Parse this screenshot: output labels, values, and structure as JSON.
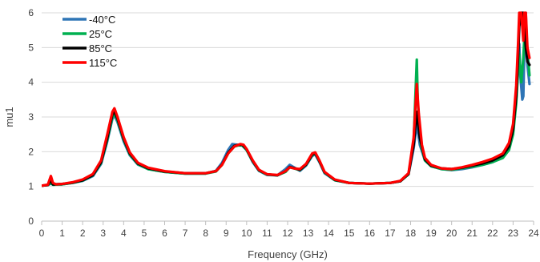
{
  "chart_data": {
    "type": "line",
    "title": "",
    "xlabel": "Frequency (GHz)",
    "ylabel": "mu1",
    "xlim": [
      0,
      24
    ],
    "ylim": [
      0,
      6
    ],
    "xticks": [
      "0",
      "1",
      "2",
      "3",
      "4",
      "5",
      "6",
      "7",
      "8",
      "9",
      "10",
      "11",
      "12",
      "13",
      "14",
      "15",
      "16",
      "17",
      "18",
      "19",
      "20",
      "21",
      "22",
      "23",
      "24"
    ],
    "yticks": [
      "0",
      "1",
      "2",
      "3",
      "4",
      "5",
      "6"
    ],
    "grid": "horizontal",
    "legend_position": "top-left",
    "series": [
      {
        "name": "-40°C",
        "color": "#2E75B6",
        "points": [
          [
            0,
            1.02
          ],
          [
            0.3,
            1.04
          ],
          [
            0.45,
            1.08
          ],
          [
            0.55,
            1.05
          ],
          [
            1,
            1.06
          ],
          [
            1.5,
            1.1
          ],
          [
            2,
            1.16
          ],
          [
            2.5,
            1.3
          ],
          [
            2.9,
            1.65
          ],
          [
            3.2,
            2.3
          ],
          [
            3.45,
            2.95
          ],
          [
            3.55,
            3.05
          ],
          [
            3.7,
            2.85
          ],
          [
            4,
            2.3
          ],
          [
            4.3,
            1.9
          ],
          [
            4.7,
            1.63
          ],
          [
            5.2,
            1.5
          ],
          [
            6,
            1.42
          ],
          [
            7,
            1.37
          ],
          [
            8,
            1.37
          ],
          [
            8.5,
            1.45
          ],
          [
            8.8,
            1.68
          ],
          [
            9.1,
            2.05
          ],
          [
            9.3,
            2.22
          ],
          [
            9.55,
            2.2
          ],
          [
            9.75,
            2.2
          ],
          [
            10,
            2.05
          ],
          [
            10.3,
            1.7
          ],
          [
            10.6,
            1.45
          ],
          [
            11,
            1.33
          ],
          [
            11.5,
            1.32
          ],
          [
            11.9,
            1.5
          ],
          [
            12.1,
            1.62
          ],
          [
            12.3,
            1.55
          ],
          [
            12.6,
            1.45
          ],
          [
            12.9,
            1.6
          ],
          [
            13.2,
            1.88
          ],
          [
            13.35,
            1.92
          ],
          [
            13.55,
            1.7
          ],
          [
            13.8,
            1.38
          ],
          [
            14.3,
            1.18
          ],
          [
            15,
            1.1
          ],
          [
            16,
            1.08
          ],
          [
            17,
            1.1
          ],
          [
            17.5,
            1.15
          ],
          [
            17.9,
            1.35
          ],
          [
            18.15,
            2.1
          ],
          [
            18.3,
            2.8
          ],
          [
            18.45,
            2.2
          ],
          [
            18.7,
            1.75
          ],
          [
            19,
            1.58
          ],
          [
            19.5,
            1.5
          ],
          [
            20,
            1.47
          ],
          [
            20.5,
            1.5
          ],
          [
            21,
            1.55
          ],
          [
            21.5,
            1.62
          ],
          [
            22,
            1.7
          ],
          [
            22.5,
            1.85
          ],
          [
            22.8,
            2.1
          ],
          [
            23,
            2.6
          ],
          [
            23.15,
            3.5
          ],
          [
            23.25,
            4.5
          ],
          [
            23.3,
            5.1
          ],
          [
            23.35,
            4.2
          ],
          [
            23.45,
            3.5
          ],
          [
            23.5,
            3.6
          ],
          [
            23.55,
            5.0
          ],
          [
            23.62,
            6.0
          ],
          [
            23.7,
            4.5
          ],
          [
            23.8,
            3.95
          ]
        ]
      },
      {
        "name": "25°C",
        "color": "#00B050",
        "points": [
          [
            0,
            1.02
          ],
          [
            0.3,
            1.04
          ],
          [
            0.45,
            1.1
          ],
          [
            0.55,
            1.05
          ],
          [
            1,
            1.06
          ],
          [
            1.5,
            1.1
          ],
          [
            2,
            1.17
          ],
          [
            2.5,
            1.32
          ],
          [
            2.9,
            1.68
          ],
          [
            3.2,
            2.35
          ],
          [
            3.45,
            3.0
          ],
          [
            3.55,
            3.1
          ],
          [
            3.7,
            2.9
          ],
          [
            4,
            2.35
          ],
          [
            4.3,
            1.92
          ],
          [
            4.7,
            1.64
          ],
          [
            5.2,
            1.5
          ],
          [
            6,
            1.42
          ],
          [
            7,
            1.37
          ],
          [
            8,
            1.37
          ],
          [
            8.5,
            1.43
          ],
          [
            8.8,
            1.62
          ],
          [
            9.1,
            1.95
          ],
          [
            9.4,
            2.15
          ],
          [
            9.6,
            2.18
          ],
          [
            9.8,
            2.18
          ],
          [
            10,
            2.05
          ],
          [
            10.3,
            1.72
          ],
          [
            10.6,
            1.46
          ],
          [
            11,
            1.34
          ],
          [
            11.5,
            1.32
          ],
          [
            11.9,
            1.42
          ],
          [
            12.1,
            1.55
          ],
          [
            12.3,
            1.52
          ],
          [
            12.6,
            1.47
          ],
          [
            12.9,
            1.62
          ],
          [
            13.2,
            1.9
          ],
          [
            13.35,
            1.95
          ],
          [
            13.55,
            1.72
          ],
          [
            13.8,
            1.4
          ],
          [
            14.3,
            1.18
          ],
          [
            15,
            1.1
          ],
          [
            16,
            1.08
          ],
          [
            17,
            1.1
          ],
          [
            17.5,
            1.15
          ],
          [
            17.9,
            1.35
          ],
          [
            18.15,
            2.3
          ],
          [
            18.3,
            4.65
          ],
          [
            18.35,
            3.4
          ],
          [
            18.5,
            2.2
          ],
          [
            18.7,
            1.75
          ],
          [
            19,
            1.58
          ],
          [
            19.5,
            1.5
          ],
          [
            20,
            1.48
          ],
          [
            20.5,
            1.52
          ],
          [
            21,
            1.57
          ],
          [
            21.5,
            1.62
          ],
          [
            22,
            1.7
          ],
          [
            22.5,
            1.82
          ],
          [
            22.8,
            2.05
          ],
          [
            23,
            2.5
          ],
          [
            23.15,
            3.4
          ],
          [
            23.25,
            4.4
          ],
          [
            23.3,
            4.8
          ],
          [
            23.4,
            4.0
          ],
          [
            23.5,
            4.7
          ],
          [
            23.55,
            5.3
          ],
          [
            23.62,
            5.8
          ],
          [
            23.7,
            4.9
          ],
          [
            23.8,
            4.2
          ]
        ]
      },
      {
        "name": "85°C",
        "color": "#000000",
        "points": [
          [
            0,
            1.02
          ],
          [
            0.3,
            1.04
          ],
          [
            0.45,
            1.18
          ],
          [
            0.55,
            1.06
          ],
          [
            1,
            1.07
          ],
          [
            1.5,
            1.11
          ],
          [
            2,
            1.18
          ],
          [
            2.5,
            1.33
          ],
          [
            2.9,
            1.7
          ],
          [
            3.2,
            2.4
          ],
          [
            3.45,
            3.08
          ],
          [
            3.55,
            3.15
          ],
          [
            3.7,
            2.95
          ],
          [
            4,
            2.38
          ],
          [
            4.3,
            1.95
          ],
          [
            4.7,
            1.66
          ],
          [
            5.2,
            1.52
          ],
          [
            6,
            1.43
          ],
          [
            7,
            1.38
          ],
          [
            8,
            1.38
          ],
          [
            8.5,
            1.44
          ],
          [
            8.8,
            1.63
          ],
          [
            9.1,
            1.97
          ],
          [
            9.4,
            2.17
          ],
          [
            9.6,
            2.2
          ],
          [
            9.8,
            2.2
          ],
          [
            10,
            2.07
          ],
          [
            10.3,
            1.73
          ],
          [
            10.6,
            1.47
          ],
          [
            11,
            1.35
          ],
          [
            11.5,
            1.32
          ],
          [
            11.9,
            1.44
          ],
          [
            12.1,
            1.56
          ],
          [
            12.3,
            1.53
          ],
          [
            12.6,
            1.48
          ],
          [
            12.9,
            1.63
          ],
          [
            13.2,
            1.92
          ],
          [
            13.35,
            1.96
          ],
          [
            13.55,
            1.73
          ],
          [
            13.8,
            1.41
          ],
          [
            14.3,
            1.19
          ],
          [
            15,
            1.1
          ],
          [
            16,
            1.08
          ],
          [
            17,
            1.1
          ],
          [
            17.5,
            1.15
          ],
          [
            17.9,
            1.36
          ],
          [
            18.15,
            2.2
          ],
          [
            18.3,
            3.15
          ],
          [
            18.45,
            2.4
          ],
          [
            18.7,
            1.78
          ],
          [
            19,
            1.6
          ],
          [
            19.5,
            1.52
          ],
          [
            20,
            1.5
          ],
          [
            20.5,
            1.54
          ],
          [
            21,
            1.6
          ],
          [
            21.5,
            1.66
          ],
          [
            22,
            1.75
          ],
          [
            22.5,
            1.9
          ],
          [
            22.8,
            2.15
          ],
          [
            23,
            2.65
          ],
          [
            23.15,
            3.6
          ],
          [
            23.25,
            4.8
          ],
          [
            23.3,
            5.6
          ],
          [
            23.4,
            6.0
          ],
          [
            23.5,
            6.0
          ],
          [
            23.55,
            5.6
          ],
          [
            23.62,
            5.0
          ],
          [
            23.7,
            4.6
          ],
          [
            23.8,
            4.5
          ]
        ]
      },
      {
        "name": "115°C",
        "color": "#FF0000",
        "points": [
          [
            0,
            1.02
          ],
          [
            0.3,
            1.05
          ],
          [
            0.45,
            1.3
          ],
          [
            0.55,
            1.1
          ],
          [
            0.7,
            1.06
          ],
          [
            1,
            1.07
          ],
          [
            1.5,
            1.12
          ],
          [
            2,
            1.2
          ],
          [
            2.5,
            1.36
          ],
          [
            2.9,
            1.75
          ],
          [
            3.2,
            2.5
          ],
          [
            3.45,
            3.15
          ],
          [
            3.55,
            3.25
          ],
          [
            3.7,
            3.0
          ],
          [
            4,
            2.42
          ],
          [
            4.3,
            1.98
          ],
          [
            4.7,
            1.68
          ],
          [
            5.2,
            1.54
          ],
          [
            6,
            1.44
          ],
          [
            7,
            1.38
          ],
          [
            8,
            1.38
          ],
          [
            8.5,
            1.44
          ],
          [
            8.8,
            1.62
          ],
          [
            9.1,
            1.95
          ],
          [
            9.4,
            2.15
          ],
          [
            9.7,
            2.22
          ],
          [
            9.85,
            2.2
          ],
          [
            10,
            2.08
          ],
          [
            10.3,
            1.75
          ],
          [
            10.6,
            1.48
          ],
          [
            11,
            1.35
          ],
          [
            11.5,
            1.33
          ],
          [
            11.9,
            1.44
          ],
          [
            12.1,
            1.55
          ],
          [
            12.3,
            1.52
          ],
          [
            12.6,
            1.5
          ],
          [
            12.9,
            1.65
          ],
          [
            13.2,
            1.95
          ],
          [
            13.35,
            1.98
          ],
          [
            13.55,
            1.75
          ],
          [
            13.8,
            1.42
          ],
          [
            14.3,
            1.2
          ],
          [
            15,
            1.1
          ],
          [
            16,
            1.08
          ],
          [
            17,
            1.1
          ],
          [
            17.5,
            1.16
          ],
          [
            17.9,
            1.38
          ],
          [
            18.15,
            2.4
          ],
          [
            18.3,
            3.95
          ],
          [
            18.4,
            3.1
          ],
          [
            18.55,
            2.2
          ],
          [
            18.7,
            1.82
          ],
          [
            19,
            1.62
          ],
          [
            19.5,
            1.52
          ],
          [
            20,
            1.5
          ],
          [
            20.5,
            1.55
          ],
          [
            21,
            1.62
          ],
          [
            21.5,
            1.7
          ],
          [
            22,
            1.8
          ],
          [
            22.5,
            1.95
          ],
          [
            22.8,
            2.25
          ],
          [
            23,
            2.8
          ],
          [
            23.15,
            3.9
          ],
          [
            23.25,
            5.2
          ],
          [
            23.3,
            6.0
          ],
          [
            23.4,
            6.0
          ],
          [
            23.5,
            5.2
          ],
          [
            23.55,
            6.0
          ],
          [
            23.62,
            6.0
          ],
          [
            23.7,
            5.0
          ],
          [
            23.8,
            4.7
          ]
        ]
      }
    ]
  }
}
